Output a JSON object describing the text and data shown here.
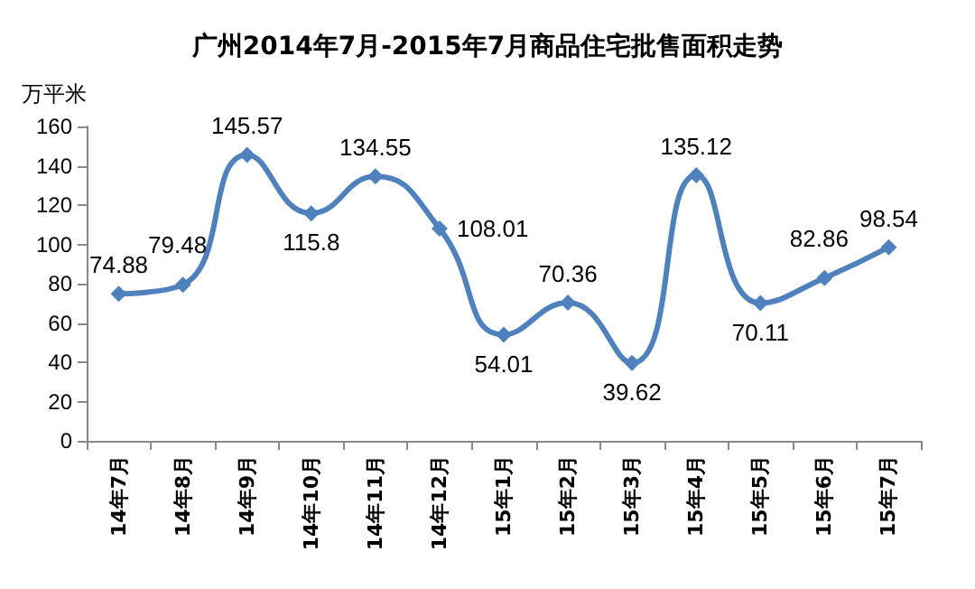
{
  "chart_data": {
    "type": "line",
    "title": "广州2014年7月-2015年7月商品住宅批售面积走势",
    "ylabel": "万平米",
    "categories": [
      "14年7月",
      "14年8月",
      "14年9月",
      "14年10月",
      "14年11月",
      "14年12月",
      "15年1月",
      "15年2月",
      "15年3月",
      "15年4月",
      "15年5月",
      "15年6月",
      "15年7月"
    ],
    "series": [
      {
        "color": "#4f81bd",
        "values": [
          74.88,
          79.48,
          145.57,
          115.8,
          134.55,
          108.01,
          54.01,
          70.36,
          39.62,
          135.12,
          70.11,
          82.86,
          98.54
        ]
      }
    ],
    "ylim": [
      0,
      160
    ],
    "yticks": [
      0,
      20,
      40,
      60,
      80,
      100,
      120,
      140,
      160
    ],
    "grid": false,
    "marker": "diamond",
    "line_style": "solid",
    "data_labels": true
  }
}
